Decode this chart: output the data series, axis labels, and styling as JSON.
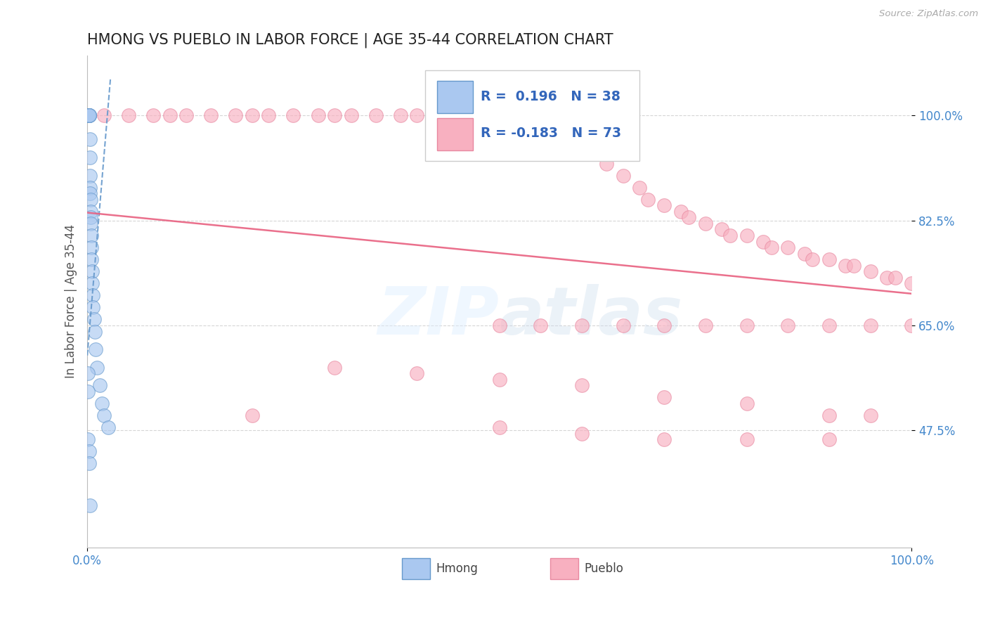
{
  "title": "HMONG VS PUEBLO IN LABOR FORCE | AGE 35-44 CORRELATION CHART",
  "source_text": "Source: ZipAtlas.com",
  "ylabel": "In Labor Force | Age 35-44",
  "background_color": "#ffffff",
  "watermark_text": "ZIPatlas",
  "title_fontsize": 15,
  "tick_label_color": "#4488cc",
  "grid_color": "#cccccc",
  "hmong_color": "#aac8f0",
  "hmong_edge": "#6699cc",
  "pueblo_color": "#f8b0c0",
  "pueblo_edge": "#e888a0",
  "hmong_line_color": "#6699cc",
  "pueblo_line_color": "#e86080",
  "legend_R1": "R =  0.196",
  "legend_N1": "N = 38",
  "legend_R2": "R = -0.183",
  "legend_N2": "N = 73",
  "hmong_x": [
    0.001,
    0.001,
    0.001,
    0.002,
    0.002,
    0.002,
    0.002,
    0.002,
    0.003,
    0.003,
    0.003,
    0.003,
    0.003,
    0.004,
    0.004,
    0.004,
    0.004,
    0.005,
    0.005,
    0.005,
    0.006,
    0.006,
    0.007,
    0.007,
    0.008,
    0.009,
    0.01,
    0.012,
    0.015,
    0.018,
    0.02,
    0.025,
    0.001,
    0.001,
    0.001,
    0.002,
    0.002,
    0.003
  ],
  "hmong_y": [
    1.0,
    1.0,
    1.0,
    1.0,
    1.0,
    1.0,
    1.0,
    1.0,
    0.96,
    0.93,
    0.9,
    0.88,
    0.87,
    0.86,
    0.84,
    0.83,
    0.82,
    0.8,
    0.78,
    0.76,
    0.74,
    0.72,
    0.7,
    0.68,
    0.66,
    0.64,
    0.61,
    0.58,
    0.55,
    0.52,
    0.5,
    0.48,
    0.57,
    0.54,
    0.46,
    0.44,
    0.42,
    0.35
  ],
  "pueblo_x": [
    0.02,
    0.05,
    0.08,
    0.1,
    0.12,
    0.15,
    0.18,
    0.2,
    0.22,
    0.25,
    0.28,
    0.3,
    0.32,
    0.35,
    0.38,
    0.4,
    0.42,
    0.45,
    0.48,
    0.5,
    0.52,
    0.55,
    0.57,
    0.6,
    0.62,
    0.63,
    0.65,
    0.67,
    0.68,
    0.7,
    0.72,
    0.73,
    0.75,
    0.77,
    0.78,
    0.8,
    0.82,
    0.83,
    0.85,
    0.87,
    0.88,
    0.9,
    0.92,
    0.93,
    0.95,
    0.97,
    0.98,
    1.0,
    0.5,
    0.55,
    0.6,
    0.65,
    0.7,
    0.75,
    0.8,
    0.85,
    0.9,
    0.95,
    1.0,
    0.3,
    0.4,
    0.5,
    0.6,
    0.7,
    0.8,
    0.9,
    0.95,
    0.2,
    0.5,
    0.6,
    0.7,
    0.8,
    0.9
  ],
  "pueblo_y": [
    1.0,
    1.0,
    1.0,
    1.0,
    1.0,
    1.0,
    1.0,
    1.0,
    1.0,
    1.0,
    1.0,
    1.0,
    1.0,
    1.0,
    1.0,
    1.0,
    1.0,
    1.0,
    1.0,
    1.0,
    1.0,
    1.0,
    1.0,
    0.96,
    0.94,
    0.92,
    0.9,
    0.88,
    0.86,
    0.85,
    0.84,
    0.83,
    0.82,
    0.81,
    0.8,
    0.8,
    0.79,
    0.78,
    0.78,
    0.77,
    0.76,
    0.76,
    0.75,
    0.75,
    0.74,
    0.73,
    0.73,
    0.72,
    0.65,
    0.65,
    0.65,
    0.65,
    0.65,
    0.65,
    0.65,
    0.65,
    0.65,
    0.65,
    0.65,
    0.58,
    0.57,
    0.56,
    0.55,
    0.53,
    0.52,
    0.5,
    0.5,
    0.5,
    0.48,
    0.47,
    0.46,
    0.46,
    0.46
  ],
  "xlim": [
    0.0,
    1.0
  ],
  "ylim": [
    0.28,
    1.1
  ],
  "yticks": [
    1.0,
    0.825,
    0.65,
    0.475
  ],
  "ytick_labels": [
    "100.0%",
    "82.5%",
    "65.0%",
    "47.5%"
  ],
  "xticks": [
    0.0,
    1.0
  ],
  "xtick_labels": [
    "0.0%",
    "100.0%"
  ],
  "pueblo_line_x0": 0.0,
  "pueblo_line_x1": 1.0,
  "pueblo_line_y0": 0.838,
  "pueblo_line_y1": 0.703,
  "hmong_line_x0": 0.0,
  "hmong_line_x1": 0.028,
  "hmong_line_y0": 0.6,
  "hmong_line_y1": 1.06
}
